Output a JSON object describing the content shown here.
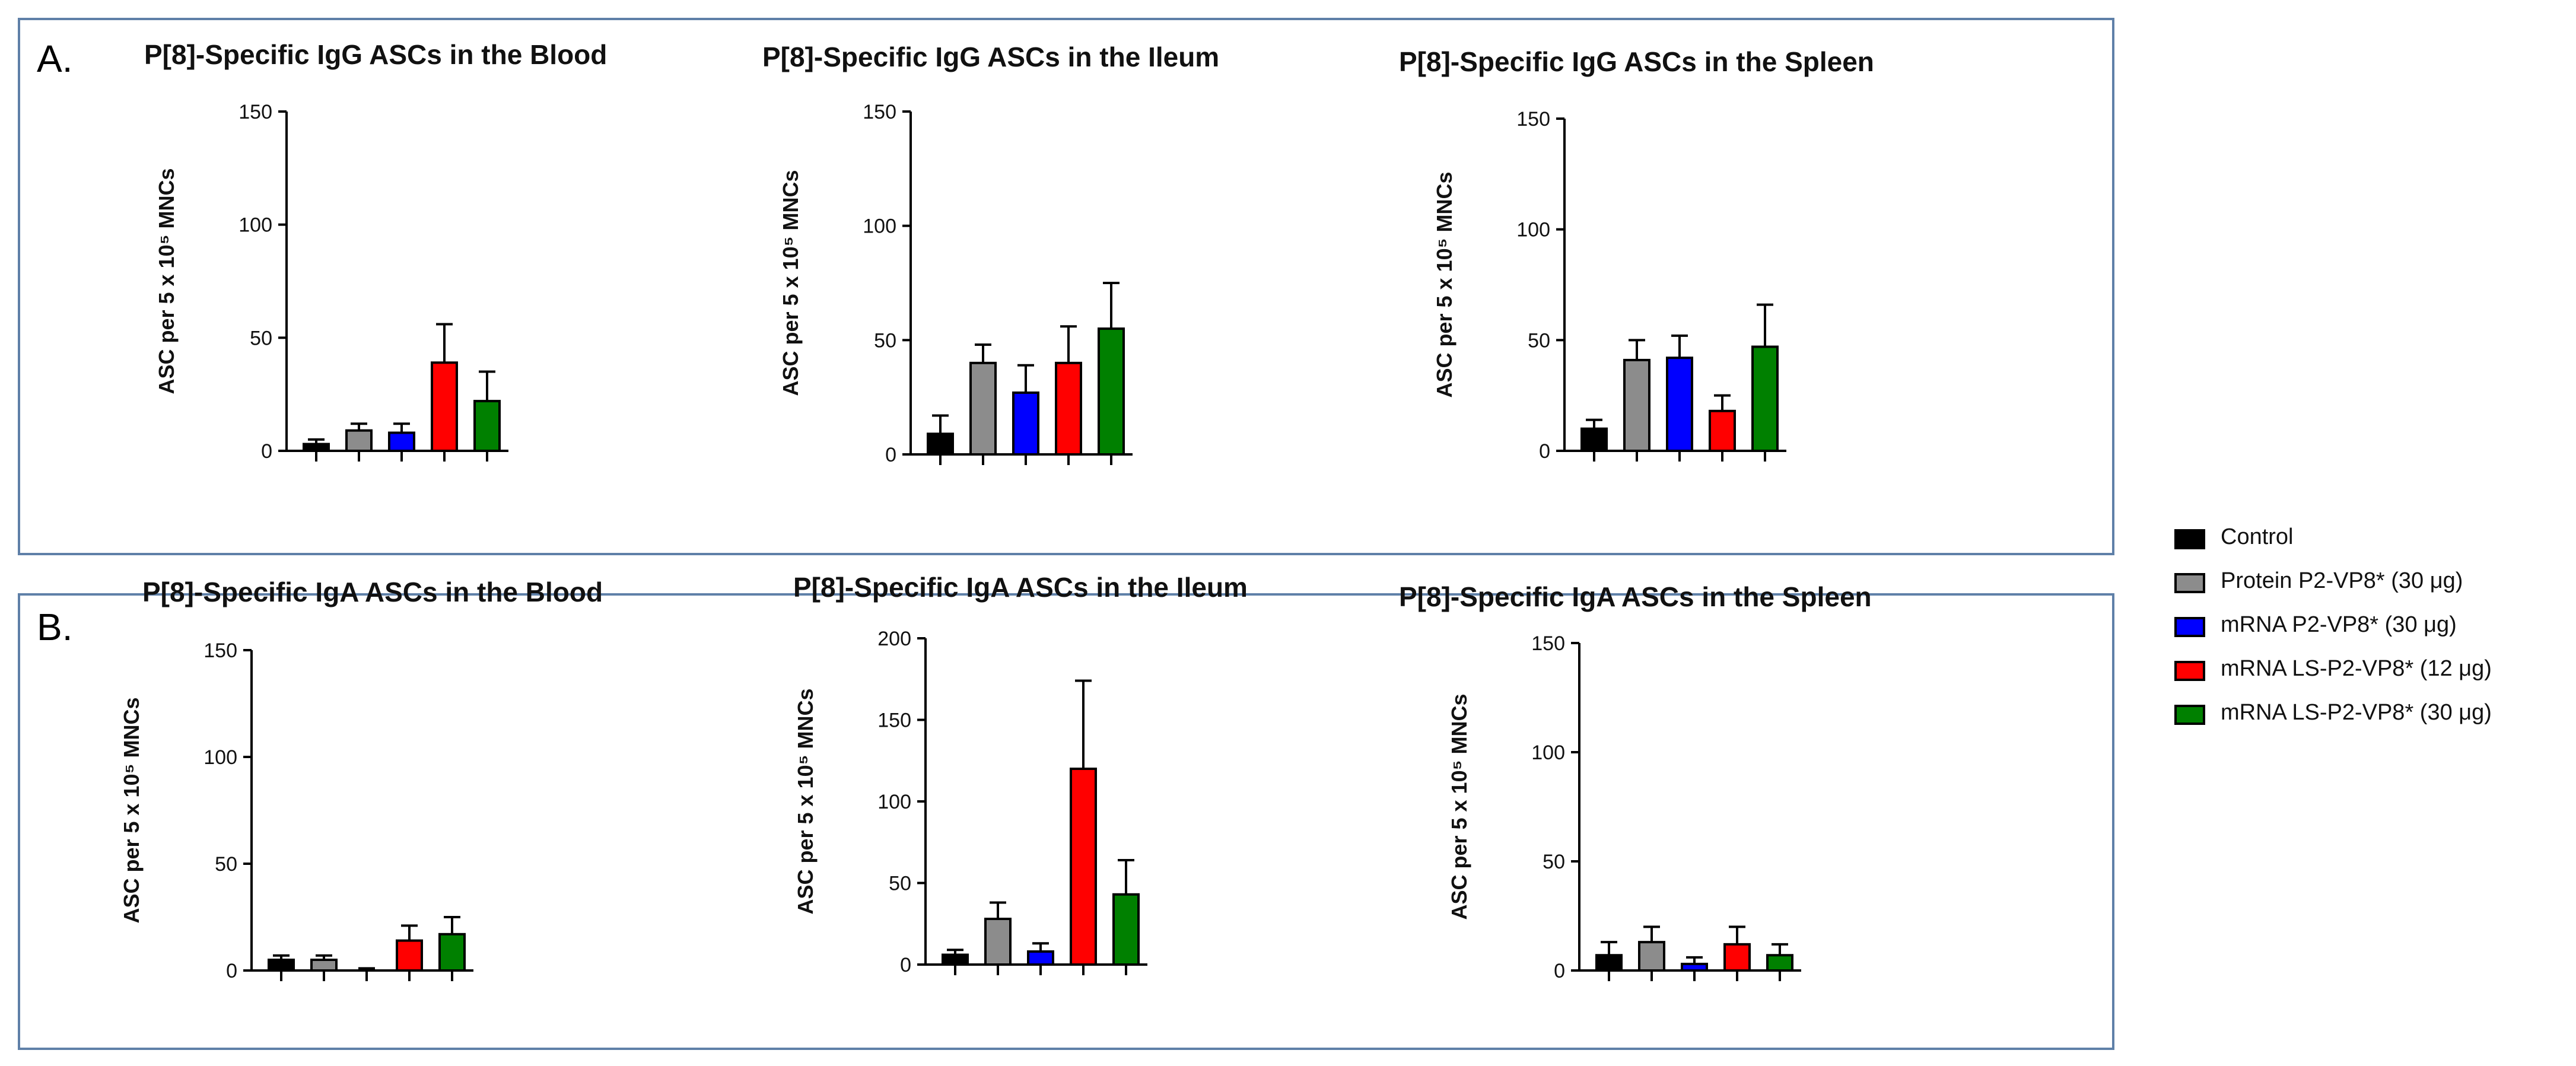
{
  "panels": [
    {
      "letter": "A."
    },
    {
      "letter": "B."
    }
  ],
  "legend": [
    {
      "label": "Control",
      "color": "#000000"
    },
    {
      "label": "Protein P2-VP8* (30 μg)",
      "color": "#8c8c8c"
    },
    {
      "label": "mRNA P2-VP8* (30 μg)",
      "color": "#0000ff"
    },
    {
      "label": "mRNA LS-P2-VP8* (12 μg)",
      "color": "#ff0000"
    },
    {
      "label": "mRNA LS-P2-VP8* (30 μg)",
      "color": "#008000"
    }
  ],
  "chart_data": [
    {
      "type": "bar",
      "title": "P[8]-Specific IgG ASCs in the Blood",
      "ylabel": "ASC per 5 x 10⁵ MNCs",
      "ylim": [
        0,
        150
      ],
      "yticks": [
        "0",
        "50",
        "100",
        "150"
      ],
      "categories": [
        "Control",
        "Protein P2-VP8* (30 μg)",
        "mRNA P2-VP8* (30 μg)",
        "mRNA LS-P2-VP8* (12 μg)",
        "mRNA LS-P2-VP8* (30 μg)"
      ],
      "values": [
        3,
        9,
        8,
        39,
        22
      ],
      "errors": [
        2,
        3,
        4,
        17,
        13
      ]
    },
    {
      "type": "bar",
      "title": "P[8]-Specific IgG ASCs in the Ileum",
      "ylabel": "ASC per 5 x 10⁵ MNCs",
      "ylim": [
        0,
        150
      ],
      "yticks": [
        "0",
        "50",
        "100",
        "150"
      ],
      "categories": [
        "Control",
        "Protein P2-VP8* (30 μg)",
        "mRNA P2-VP8* (30 μg)",
        "mRNA LS-P2-VP8* (12 μg)",
        "mRNA LS-P2-VP8* (30 μg)"
      ],
      "values": [
        9,
        40,
        27,
        40,
        55
      ],
      "errors": [
        8,
        8,
        12,
        16,
        20
      ]
    },
    {
      "type": "bar",
      "title": "P[8]-Specific IgG ASCs in the Spleen",
      "ylabel": "ASC per 5 x 10⁵ MNCs",
      "ylim": [
        0,
        150
      ],
      "yticks": [
        "0",
        "50",
        "100",
        "150"
      ],
      "categories": [
        "Control",
        "Protein P2-VP8* (30 μg)",
        "mRNA P2-VP8* (30 μg)",
        "mRNA LS-P2-VP8* (12 μg)",
        "mRNA LS-P2-VP8* (30 μg)"
      ],
      "values": [
        10,
        41,
        42,
        18,
        47
      ],
      "errors": [
        4,
        9,
        10,
        7,
        19
      ]
    },
    {
      "type": "bar",
      "title": "P[8]-Specific IgA ASCs in the Blood",
      "ylabel": "ASC per 5 x 10⁵ MNCs",
      "ylim": [
        0,
        150
      ],
      "yticks": [
        "0",
        "50",
        "100",
        "150"
      ],
      "categories": [
        "Control",
        "Protein P2-VP8* (30 μg)",
        "mRNA P2-VP8* (30 μg)",
        "mRNA LS-P2-VP8* (12 μg)",
        "mRNA LS-P2-VP8* (30 μg)"
      ],
      "values": [
        5,
        5,
        0,
        14,
        17
      ],
      "errors": [
        2,
        2,
        1,
        7,
        8
      ]
    },
    {
      "type": "bar",
      "title": "P[8]-Specific IgA ASCs in the Ileum",
      "ylabel": "ASC per 5 x 10⁵ MNCs",
      "ylim": [
        0,
        200
      ],
      "yticks": [
        "0",
        "50",
        "100",
        "150",
        "200"
      ],
      "categories": [
        "Control",
        "Protein P2-VP8* (30 μg)",
        "mRNA P2-VP8* (30 μg)",
        "mRNA LS-P2-VP8* (12 μg)",
        "mRNA LS-P2-VP8* (30 μg)"
      ],
      "values": [
        6,
        28,
        8,
        120,
        43
      ],
      "errors": [
        3,
        10,
        5,
        54,
        21
      ]
    },
    {
      "type": "bar",
      "title": "P[8]-Specific IgA ASCs in the Spleen",
      "ylabel": "ASC per 5 x 10⁵ MNCs",
      "ylim": [
        0,
        150
      ],
      "yticks": [
        "0",
        "50",
        "100",
        "150"
      ],
      "categories": [
        "Control",
        "Protein P2-VP8* (30 μg)",
        "mRNA P2-VP8* (30 μg)",
        "mRNA LS-P2-VP8* (12 μg)",
        "mRNA LS-P2-VP8* (30 μg)"
      ],
      "values": [
        7,
        13,
        3,
        12,
        7
      ],
      "errors": [
        6,
        7,
        3,
        8,
        5
      ]
    }
  ]
}
